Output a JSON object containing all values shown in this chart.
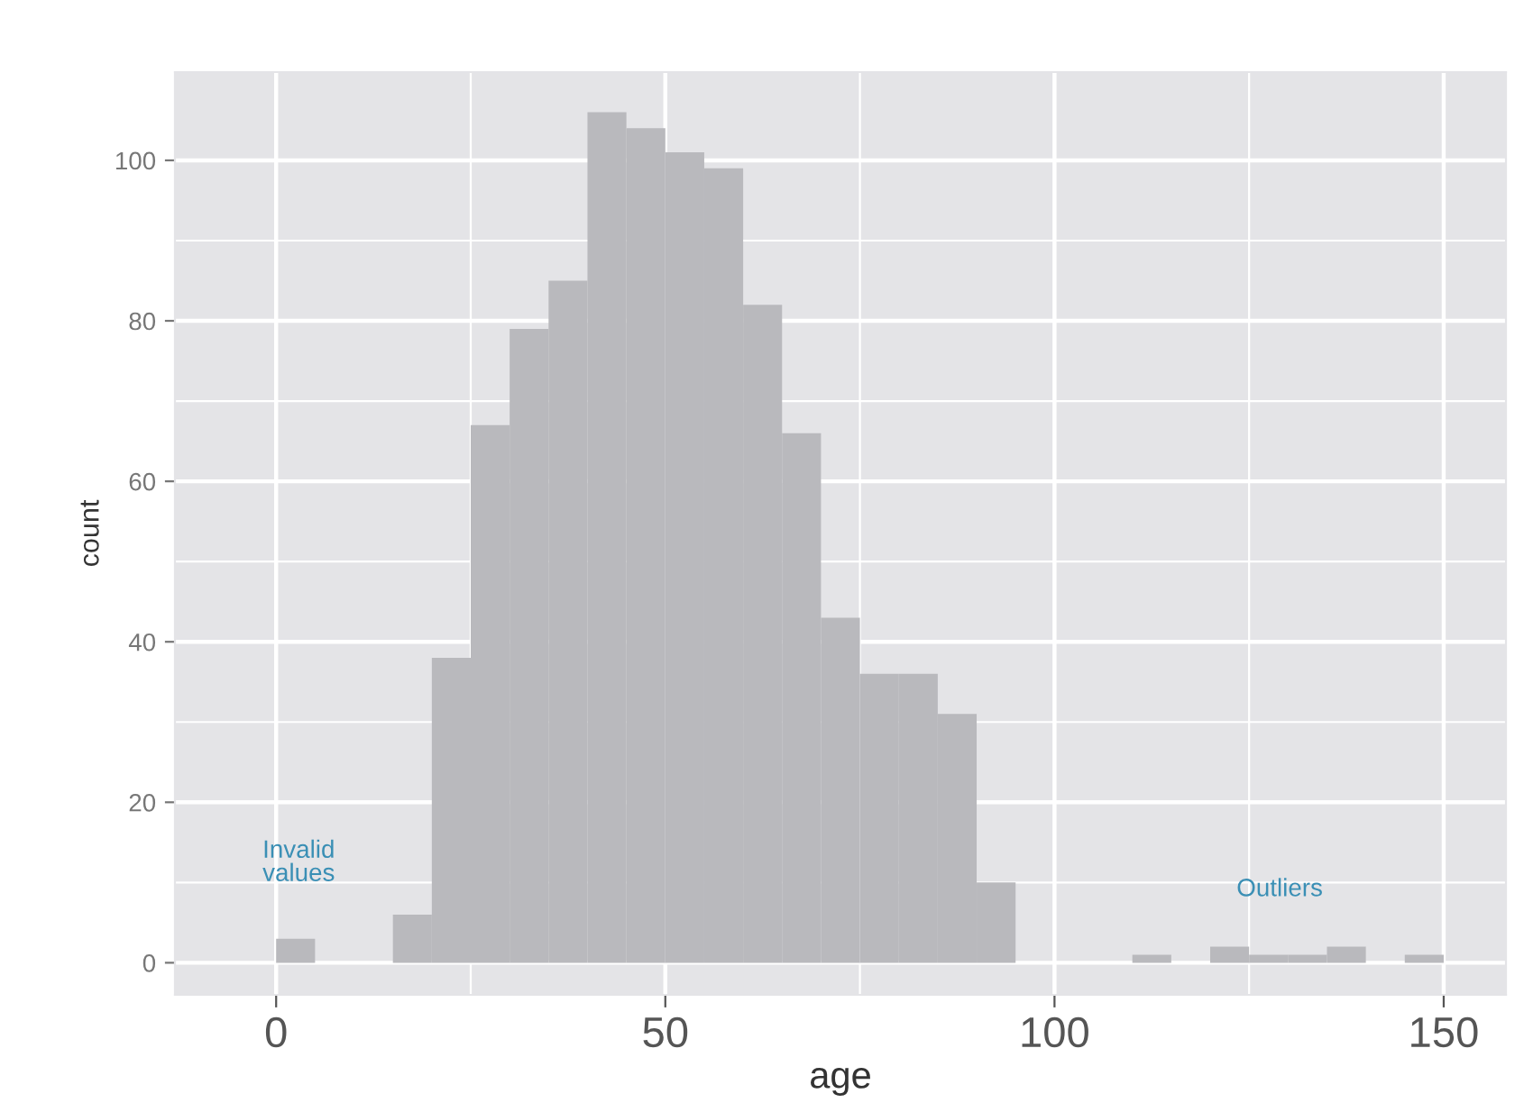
{
  "chart_data": {
    "type": "histogram",
    "xlabel": "age",
    "ylabel": "count",
    "bins": [
      0,
      5,
      10,
      15,
      20,
      25,
      30,
      35,
      40,
      45,
      50,
      55,
      60,
      65,
      70,
      75,
      80,
      85,
      90,
      95,
      100,
      105,
      110,
      115,
      120,
      125,
      130,
      135,
      140,
      145,
      150
    ],
    "values": [
      3,
      0,
      0,
      6,
      38,
      67,
      79,
      85,
      106,
      104,
      101,
      99,
      82,
      66,
      43,
      36,
      36,
      31,
      10,
      0,
      0,
      0,
      1,
      0,
      2,
      1,
      1,
      2,
      0,
      1
    ],
    "color": "#b9b9bd",
    "xlim": [
      -13,
      158
    ],
    "ylim": [
      -4,
      111
    ],
    "xticks": [
      0,
      50,
      100,
      150
    ],
    "yticks": [
      0,
      20,
      40,
      60,
      80,
      100
    ],
    "grid": true,
    "annotations": [
      "Invalid\nvalues",
      "Outliers"
    ]
  }
}
